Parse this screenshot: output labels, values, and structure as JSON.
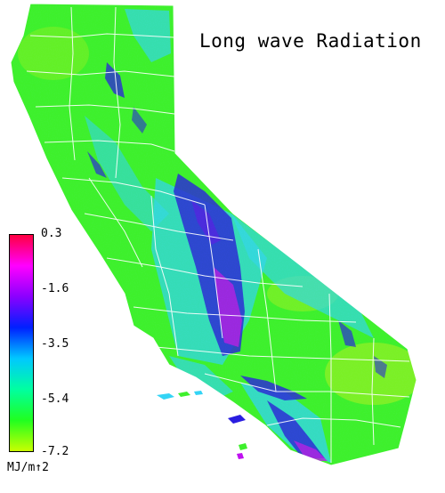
{
  "map": {
    "title": "Long wave Radiation",
    "region": "California",
    "colors": {
      "background": "#ffffff",
      "county_borders": "#ffffff",
      "mountain_low": "#2a1de0",
      "mountain_peak": "#c010f0",
      "valley_cyan": "#33d4f5",
      "land_green": "#3ef02c",
      "land_yellow": "#b8f020"
    }
  },
  "legend": {
    "colors": [
      "#ff0040",
      "#ff00ff",
      "#8a00ff",
      "#0020ff",
      "#00c8ff",
      "#00ffa0",
      "#20ff20",
      "#c8ff00"
    ],
    "ticks": [
      {
        "label": "0.3",
        "value": 0.3
      },
      {
        "label": "-1.6",
        "value": -1.6
      },
      {
        "label": "-3.5",
        "value": -3.5
      },
      {
        "label": "-5.4",
        "value": -5.4
      },
      {
        "label": "-7.2",
        "value": -7.2
      }
    ],
    "unit": "MJ/m↑2"
  }
}
